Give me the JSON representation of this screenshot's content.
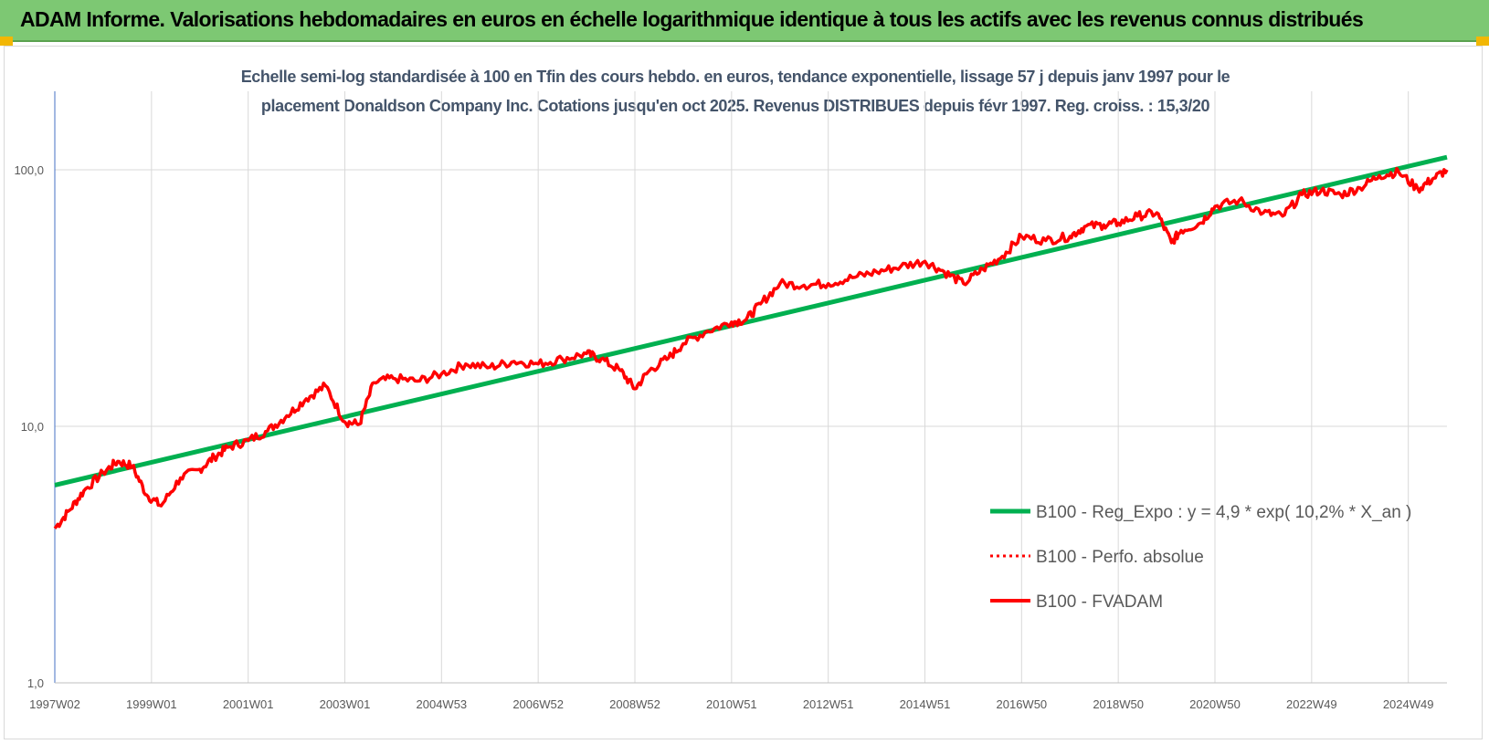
{
  "header": {
    "title": "ADAM Informe. Valorisations hebdomadaires en euros en échelle logarithmique identique à tous les actifs avec les revenus connus distribués",
    "accent_color": "#7dc873",
    "corner_color": "#f2b705"
  },
  "chart_data": {
    "type": "line",
    "title_line1": "Echelle semi-log standardisée à 100 en Tfin des cours hebdo. en euros, tendance exponentielle, lissage 57 j depuis janv 1997 pour le",
    "title_line2": "placement Donaldson Company Inc. Cotations jusqu'en oct 2025. Revenus DISTRIBUES depuis févr 1997. Reg. croiss. : 15,3/20",
    "y_scale": "log",
    "ylim": [
      1,
      200
    ],
    "xlim": [
      1997.0,
      2025.8
    ],
    "grid": true,
    "legend_position": "right",
    "y_ticks": [
      {
        "value": 1,
        "label": "1,0"
      },
      {
        "value": 10,
        "label": "10,0"
      },
      {
        "value": 100,
        "label": "100,0"
      }
    ],
    "x_ticks": [
      {
        "value": 1997.0,
        "label": "1997W02"
      },
      {
        "value": 1999.0,
        "label": "1999W01"
      },
      {
        "value": 2001.0,
        "label": "2001W01"
      },
      {
        "value": 2003.0,
        "label": "2003W01"
      },
      {
        "value": 2005.0,
        "label": "2004W53"
      },
      {
        "value": 2007.0,
        "label": "2006W52"
      },
      {
        "value": 2009.0,
        "label": "2008W52"
      },
      {
        "value": 2011.0,
        "label": "2010W51"
      },
      {
        "value": 2013.0,
        "label": "2012W51"
      },
      {
        "value": 2015.0,
        "label": "2014W51"
      },
      {
        "value": 2017.0,
        "label": "2016W50"
      },
      {
        "value": 2019.0,
        "label": "2018W50"
      },
      {
        "value": 2021.0,
        "label": "2020W50"
      },
      {
        "value": 2023.0,
        "label": "2022W49"
      },
      {
        "value": 2025.0,
        "label": "2024W49"
      }
    ],
    "series": [
      {
        "name": "B100 - Reg_Expo : y = 4,9 * exp( 10,2% *  X_an )",
        "color": "#00b050",
        "style": "solid",
        "x": [
          1997.0,
          2025.8
        ],
        "values": [
          5.9,
          112
        ]
      },
      {
        "name": "B100 - Perfo. absolue",
        "color": "#ff0000",
        "style": "dotted",
        "x": [
          1997.0,
          1997.3,
          1997.6,
          1998.0,
          1998.3,
          1998.6,
          1998.9,
          1999.2,
          1999.6,
          2000.0,
          2000.3,
          2000.6,
          2001.0,
          2001.4,
          2001.8,
          2002.2,
          2002.6,
          2003.0,
          2003.3,
          2003.6,
          2004.0,
          2004.5,
          2005.0,
          2005.5,
          2006.0,
          2006.5,
          2007.0,
          2007.5,
          2008.0,
          2008.3,
          2008.7,
          2009.0,
          2009.3,
          2009.7,
          2010.0,
          2010.5,
          2011.0,
          2011.3,
          2011.6,
          2012.0,
          2012.5,
          2013.0,
          2013.5,
          2014.0,
          2014.5,
          2015.0,
          2015.4,
          2015.8,
          2016.2,
          2016.6,
          2017.0,
          2017.5,
          2018.0,
          2018.3,
          2018.7,
          2019.0,
          2019.4,
          2019.8,
          2020.1,
          2020.3,
          2020.7,
          2021.0,
          2021.5,
          2022.0,
          2022.4,
          2022.8,
          2023.2,
          2023.6,
          2024.0,
          2024.4,
          2024.8,
          2025.2,
          2025.5,
          2025.8
        ],
        "values": [
          4.0,
          4.7,
          5.6,
          6.6,
          7.3,
          7.0,
          5.4,
          4.9,
          6.3,
          6.8,
          7.6,
          8.3,
          8.8,
          9.6,
          11.0,
          12.8,
          14.4,
          10.4,
          10.2,
          14.8,
          15.4,
          15.0,
          16.0,
          17.5,
          17.0,
          17.9,
          17.5,
          18.3,
          19.2,
          18.3,
          16.5,
          14.0,
          16.5,
          18.5,
          21.0,
          23.5,
          25.5,
          26.0,
          30.0,
          36.0,
          35.5,
          36.0,
          38.0,
          40.0,
          42.0,
          44.0,
          40.0,
          36.0,
          41.0,
          46.0,
          55.0,
          53.0,
          55.0,
          60.0,
          61.0,
          62.0,
          66.0,
          68.0,
          52.0,
          58.0,
          62.0,
          72.0,
          76.0,
          68.0,
          66.0,
          80.0,
          83.0,
          80.0,
          85.0,
          95.0,
          98.0,
          84.0,
          92.0,
          100.0
        ]
      },
      {
        "name": "B100 - FVADAM",
        "color": "#ff0000",
        "style": "solid",
        "x": [
          1997.0,
          1997.3,
          1997.6,
          1998.0,
          1998.3,
          1998.6,
          1998.9,
          1999.2,
          1999.6,
          2000.0,
          2000.3,
          2000.6,
          2001.0,
          2001.4,
          2001.8,
          2002.2,
          2002.6,
          2003.0,
          2003.3,
          2003.6,
          2004.0,
          2004.5,
          2005.0,
          2005.5,
          2006.0,
          2006.5,
          2007.0,
          2007.5,
          2008.0,
          2008.3,
          2008.7,
          2009.0,
          2009.3,
          2009.7,
          2010.0,
          2010.5,
          2011.0,
          2011.3,
          2011.6,
          2012.0,
          2012.5,
          2013.0,
          2013.5,
          2014.0,
          2014.5,
          2015.0,
          2015.4,
          2015.8,
          2016.2,
          2016.6,
          2017.0,
          2017.5,
          2018.0,
          2018.3,
          2018.7,
          2019.0,
          2019.4,
          2019.8,
          2020.1,
          2020.3,
          2020.7,
          2021.0,
          2021.5,
          2022.0,
          2022.4,
          2022.8,
          2023.2,
          2023.6,
          2024.0,
          2024.4,
          2024.8,
          2025.2,
          2025.5,
          2025.8
        ],
        "values": [
          4.0,
          4.7,
          5.6,
          6.6,
          7.3,
          7.0,
          5.4,
          4.9,
          6.3,
          6.8,
          7.6,
          8.3,
          8.8,
          9.6,
          11.0,
          12.8,
          14.4,
          10.4,
          10.2,
          14.8,
          15.4,
          15.0,
          16.0,
          17.5,
          17.0,
          17.9,
          17.5,
          18.3,
          19.2,
          18.3,
          16.5,
          14.0,
          16.5,
          18.5,
          21.0,
          23.5,
          25.5,
          26.0,
          30.0,
          36.0,
          35.5,
          36.0,
          38.0,
          40.0,
          42.0,
          44.0,
          40.0,
          36.0,
          41.0,
          46.0,
          55.0,
          53.0,
          55.0,
          60.0,
          61.0,
          62.0,
          66.0,
          68.0,
          52.0,
          58.0,
          62.0,
          72.0,
          76.0,
          68.0,
          66.0,
          80.0,
          83.0,
          80.0,
          85.0,
          95.0,
          98.0,
          84.0,
          92.0,
          100.0
        ]
      }
    ]
  }
}
